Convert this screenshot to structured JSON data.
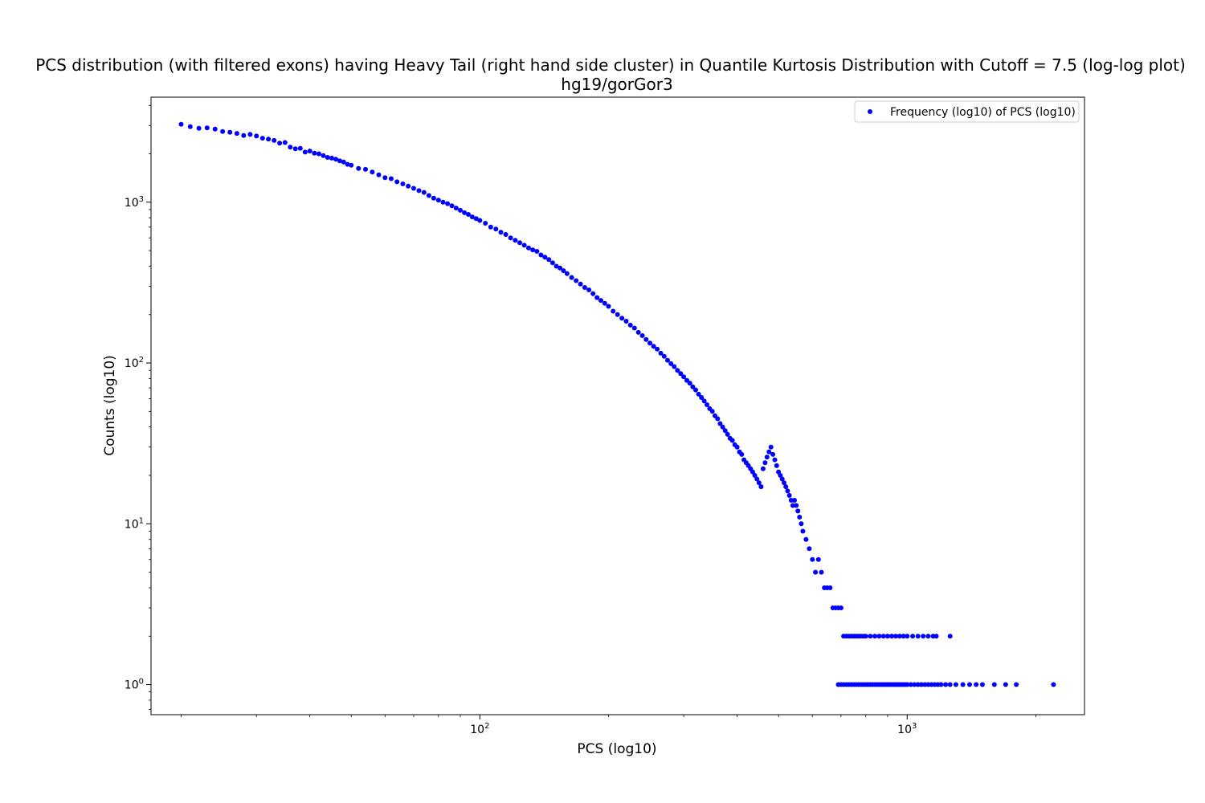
{
  "chart_data": {
    "type": "scatter",
    "title": "PCS distribution (with filtered exons) having Heavy Tail (right hand side cluster) in Quantile Kurtosis Distribution with Cutoff = 7.5 (log-log plot)",
    "subtitle": "hg19/gorGor3",
    "xlabel": "PCS (log10)",
    "ylabel": "Counts (log10)",
    "xscale": "log",
    "yscale": "log",
    "xlim": [
      17,
      2600
    ],
    "ylim": [
      0.65,
      4500
    ],
    "grid": false,
    "legend_position": "top-right",
    "x_ticks": [
      {
        "value": 100,
        "base": "10",
        "exp": "2"
      },
      {
        "value": 1000,
        "base": "10",
        "exp": "3"
      }
    ],
    "y_ticks": [
      {
        "value": 1,
        "base": "10",
        "exp": "0"
      },
      {
        "value": 10,
        "base": "10",
        "exp": "1"
      },
      {
        "value": 100,
        "base": "10",
        "exp": "2"
      },
      {
        "value": 1000,
        "base": "10",
        "exp": "3"
      }
    ],
    "series": [
      {
        "name": "Frequency (log10) of PCS (log10)",
        "color": "#0000ff",
        "points": [
          [
            20,
            3050
          ],
          [
            21,
            2950
          ],
          [
            22,
            2880
          ],
          [
            23,
            2900
          ],
          [
            24,
            2850
          ],
          [
            25,
            2750
          ],
          [
            26,
            2720
          ],
          [
            27,
            2680
          ],
          [
            28,
            2600
          ],
          [
            29,
            2640
          ],
          [
            30,
            2580
          ],
          [
            31,
            2500
          ],
          [
            32,
            2470
          ],
          [
            33,
            2420
          ],
          [
            34,
            2330
          ],
          [
            35,
            2350
          ],
          [
            36,
            2200
          ],
          [
            37,
            2150
          ],
          [
            38,
            2160
          ],
          [
            39,
            2050
          ],
          [
            40,
            2080
          ],
          [
            41,
            2020
          ],
          [
            42,
            2000
          ],
          [
            43,
            1950
          ],
          [
            44,
            1900
          ],
          [
            45,
            1880
          ],
          [
            46,
            1850
          ],
          [
            47,
            1810
          ],
          [
            48,
            1780
          ],
          [
            49,
            1720
          ],
          [
            50,
            1700
          ],
          [
            52,
            1620
          ],
          [
            54,
            1600
          ],
          [
            56,
            1540
          ],
          [
            58,
            1480
          ],
          [
            60,
            1420
          ],
          [
            62,
            1400
          ],
          [
            64,
            1340
          ],
          [
            66,
            1300
          ],
          [
            68,
            1260
          ],
          [
            70,
            1220
          ],
          [
            72,
            1180
          ],
          [
            74,
            1150
          ],
          [
            76,
            1100
          ],
          [
            78,
            1060
          ],
          [
            80,
            1030
          ],
          [
            82,
            1000
          ],
          [
            84,
            980
          ],
          [
            86,
            950
          ],
          [
            88,
            920
          ],
          [
            90,
            890
          ],
          [
            92,
            860
          ],
          [
            94,
            840
          ],
          [
            96,
            810
          ],
          [
            98,
            790
          ],
          [
            100,
            770
          ],
          [
            103,
            740
          ],
          [
            106,
            700
          ],
          [
            109,
            680
          ],
          [
            112,
            650
          ],
          [
            115,
            630
          ],
          [
            118,
            600
          ],
          [
            121,
            580
          ],
          [
            124,
            560
          ],
          [
            127,
            540
          ],
          [
            130,
            520
          ],
          [
            133,
            505
          ],
          [
            136,
            495
          ],
          [
            139,
            470
          ],
          [
            142,
            455
          ],
          [
            145,
            440
          ],
          [
            148,
            420
          ],
          [
            151,
            400
          ],
          [
            154,
            390
          ],
          [
            157,
            375
          ],
          [
            160,
            360
          ],
          [
            164,
            340
          ],
          [
            168,
            325
          ],
          [
            172,
            310
          ],
          [
            176,
            295
          ],
          [
            180,
            285
          ],
          [
            184,
            270
          ],
          [
            188,
            255
          ],
          [
            192,
            245
          ],
          [
            196,
            235
          ],
          [
            200,
            225
          ],
          [
            205,
            210
          ],
          [
            210,
            200
          ],
          [
            215,
            190
          ],
          [
            220,
            182
          ],
          [
            225,
            172
          ],
          [
            230,
            165
          ],
          [
            235,
            155
          ],
          [
            240,
            148
          ],
          [
            245,
            140
          ],
          [
            250,
            133
          ],
          [
            255,
            127
          ],
          [
            260,
            122
          ],
          [
            265,
            115
          ],
          [
            270,
            110
          ],
          [
            275,
            104
          ],
          [
            280,
            99
          ],
          [
            285,
            95
          ],
          [
            290,
            90
          ],
          [
            295,
            86
          ],
          [
            300,
            82
          ],
          [
            305,
            78
          ],
          [
            310,
            75
          ],
          [
            315,
            71
          ],
          [
            320,
            68
          ],
          [
            325,
            64
          ],
          [
            330,
            61
          ],
          [
            335,
            58
          ],
          [
            340,
            55
          ],
          [
            345,
            52
          ],
          [
            350,
            50
          ],
          [
            355,
            47
          ],
          [
            360,
            45
          ],
          [
            365,
            42
          ],
          [
            370,
            40
          ],
          [
            375,
            38
          ],
          [
            380,
            36
          ],
          [
            385,
            34
          ],
          [
            390,
            33
          ],
          [
            395,
            31
          ],
          [
            400,
            30
          ],
          [
            405,
            28
          ],
          [
            410,
            27
          ],
          [
            415,
            25
          ],
          [
            420,
            24
          ],
          [
            425,
            23
          ],
          [
            430,
            22
          ],
          [
            435,
            21
          ],
          [
            440,
            20
          ],
          [
            445,
            19
          ],
          [
            450,
            18
          ],
          [
            455,
            17
          ],
          [
            460,
            22
          ],
          [
            465,
            24
          ],
          [
            470,
            26
          ],
          [
            475,
            28
          ],
          [
            480,
            30
          ],
          [
            485,
            27
          ],
          [
            490,
            25
          ],
          [
            495,
            23
          ],
          [
            500,
            21
          ],
          [
            505,
            20
          ],
          [
            510,
            19
          ],
          [
            515,
            18
          ],
          [
            520,
            17
          ],
          [
            525,
            16
          ],
          [
            530,
            15
          ],
          [
            535,
            14
          ],
          [
            540,
            13
          ],
          [
            545,
            14
          ],
          [
            550,
            13
          ],
          [
            555,
            12
          ],
          [
            560,
            11
          ],
          [
            565,
            10
          ],
          [
            570,
            9
          ],
          [
            580,
            8
          ],
          [
            590,
            7
          ],
          [
            600,
            6
          ],
          [
            610,
            5
          ],
          [
            620,
            6
          ],
          [
            630,
            5
          ],
          [
            640,
            4
          ],
          [
            650,
            4
          ],
          [
            660,
            4
          ],
          [
            670,
            3
          ],
          [
            680,
            3
          ],
          [
            690,
            3
          ],
          [
            700,
            3
          ],
          [
            710,
            2
          ],
          [
            720,
            2
          ],
          [
            730,
            2
          ],
          [
            740,
            2
          ],
          [
            750,
            2
          ],
          [
            760,
            2
          ],
          [
            770,
            2
          ],
          [
            780,
            2
          ],
          [
            790,
            2
          ],
          [
            800,
            2
          ],
          [
            820,
            2
          ],
          [
            840,
            2
          ],
          [
            860,
            2
          ],
          [
            880,
            2
          ],
          [
            900,
            2
          ],
          [
            920,
            2
          ],
          [
            940,
            2
          ],
          [
            960,
            2
          ],
          [
            980,
            2
          ],
          [
            1000,
            2
          ],
          [
            1030,
            2
          ],
          [
            1060,
            2
          ],
          [
            1090,
            2
          ],
          [
            1120,
            2
          ],
          [
            1150,
            2
          ],
          [
            1170,
            2
          ],
          [
            1260,
            2
          ],
          [
            690,
            1
          ],
          [
            700,
            1
          ],
          [
            710,
            1
          ],
          [
            720,
            1
          ],
          [
            730,
            1
          ],
          [
            740,
            1
          ],
          [
            750,
            1
          ],
          [
            760,
            1
          ],
          [
            770,
            1
          ],
          [
            780,
            1
          ],
          [
            790,
            1
          ],
          [
            800,
            1
          ],
          [
            810,
            1
          ],
          [
            820,
            1
          ],
          [
            830,
            1
          ],
          [
            840,
            1
          ],
          [
            850,
            1
          ],
          [
            860,
            1
          ],
          [
            870,
            1
          ],
          [
            880,
            1
          ],
          [
            890,
            1
          ],
          [
            900,
            1
          ],
          [
            910,
            1
          ],
          [
            920,
            1
          ],
          [
            930,
            1
          ],
          [
            940,
            1
          ],
          [
            950,
            1
          ],
          [
            960,
            1
          ],
          [
            970,
            1
          ],
          [
            980,
            1
          ],
          [
            990,
            1
          ],
          [
            1000,
            1
          ],
          [
            1020,
            1
          ],
          [
            1040,
            1
          ],
          [
            1060,
            1
          ],
          [
            1080,
            1
          ],
          [
            1100,
            1
          ],
          [
            1120,
            1
          ],
          [
            1140,
            1
          ],
          [
            1160,
            1
          ],
          [
            1180,
            1
          ],
          [
            1200,
            1
          ],
          [
            1230,
            1
          ],
          [
            1260,
            1
          ],
          [
            1300,
            1
          ],
          [
            1350,
            1
          ],
          [
            1400,
            1
          ],
          [
            1450,
            1
          ],
          [
            1500,
            1
          ],
          [
            1600,
            1
          ],
          [
            1700,
            1
          ],
          [
            1800,
            1
          ],
          [
            2200,
            1
          ]
        ]
      }
    ]
  }
}
